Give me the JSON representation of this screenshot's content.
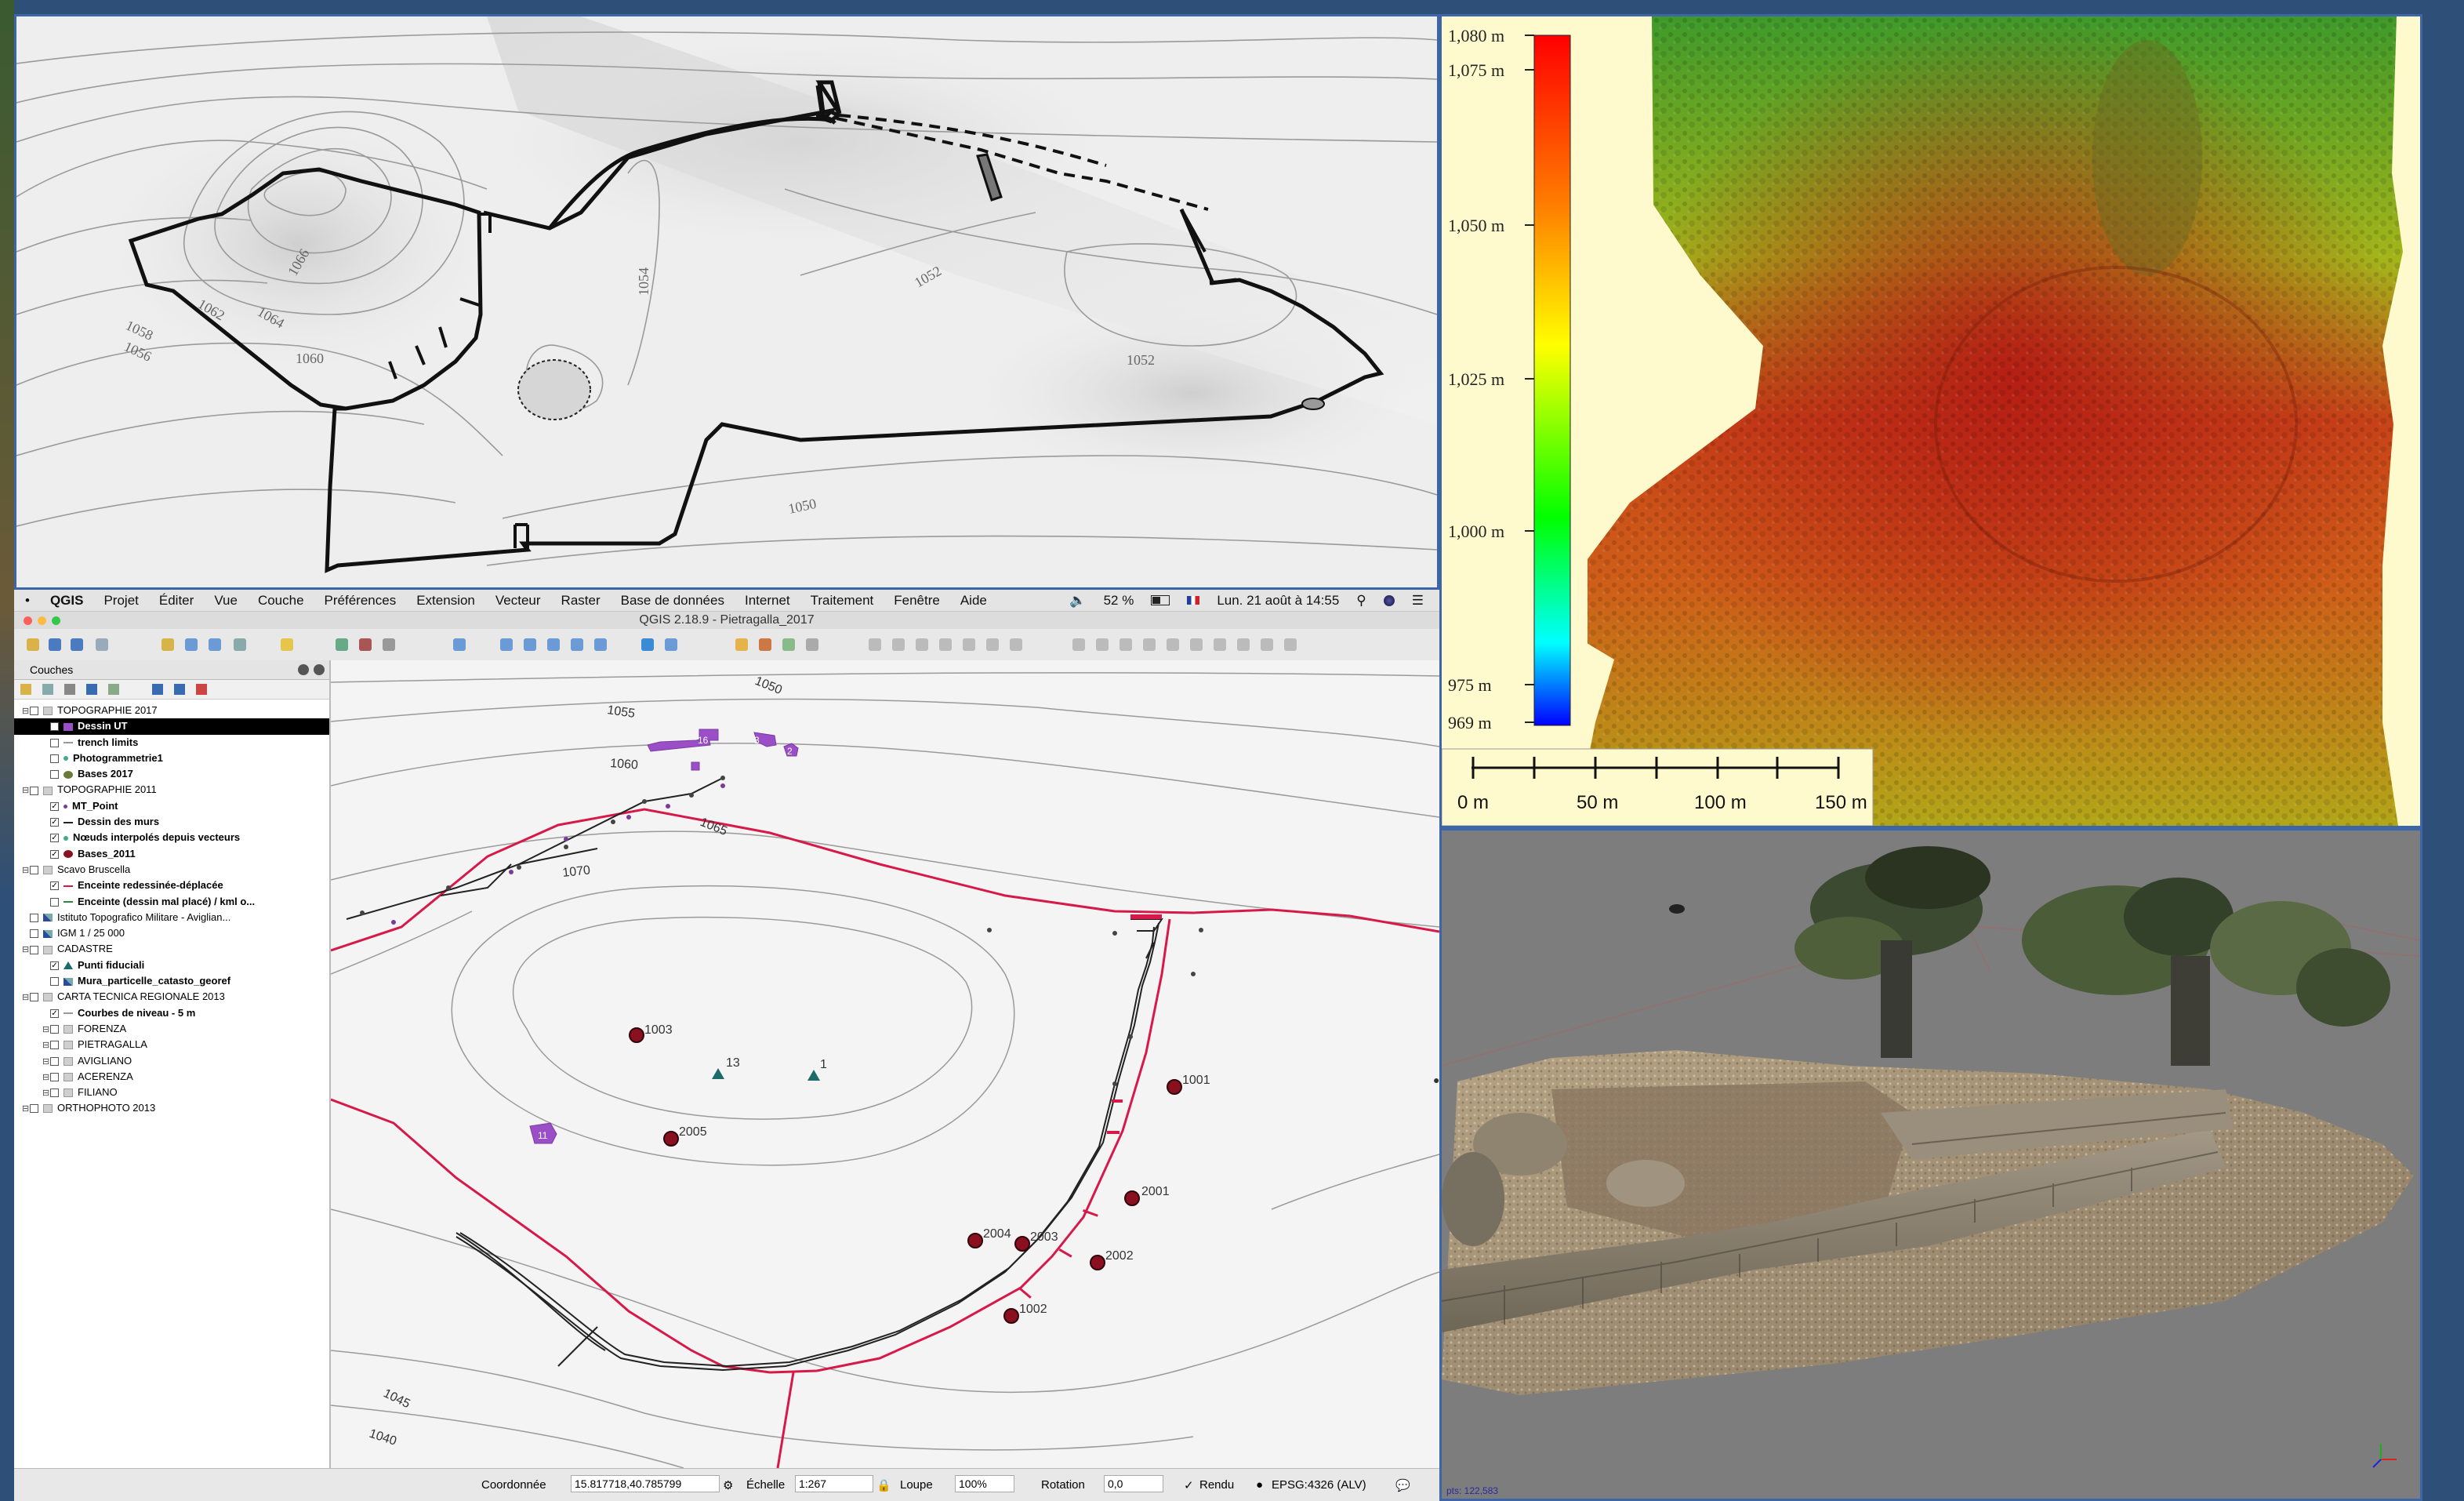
{
  "topo_map": {
    "contour_labels": [
      "1058",
      "1056",
      "1062",
      "1064",
      "1060",
      "1066",
      "1054",
      "1052",
      "1052",
      "1050"
    ]
  },
  "qgis": {
    "menubar": {
      "app_name": "QGIS",
      "items": [
        "Projet",
        "Éditer",
        "Vue",
        "Couche",
        "Préférences",
        "Extension",
        "Vecteur",
        "Raster",
        "Base de données",
        "Internet",
        "Traitement",
        "Fenêtre",
        "Aide"
      ],
      "battery": "52 %",
      "datetime": "Lun. 21 août à 14:55"
    },
    "window_title": "QGIS 2.18.9 - Pietragalla_2017",
    "layers_panel": {
      "title": "Couches",
      "rows": [
        {
          "label": "TOPOGRAPHIE 2017",
          "level": 0,
          "group": true,
          "checked": false
        },
        {
          "label": "Dessin UT",
          "level": 1,
          "checked": true,
          "selected": true,
          "symbol": "fill-purple"
        },
        {
          "label": "trench limits",
          "level": 1,
          "checked": false,
          "symbol": "line-dash"
        },
        {
          "label": "Photogrammetrie1",
          "level": 1,
          "checked": false,
          "symbol": "dot-green"
        },
        {
          "label": "Bases 2017",
          "level": 1,
          "checked": false,
          "symbol": "dot-olive"
        },
        {
          "label": "TOPOGRAPHIE 2011",
          "level": 0,
          "group": true,
          "checked": false
        },
        {
          "label": "MT_Point",
          "level": 1,
          "checked": true,
          "symbol": "dot-small"
        },
        {
          "label": "Dessin des murs",
          "level": 1,
          "checked": true,
          "symbol": "line-black"
        },
        {
          "label": "Nœuds interpolés depuis vecteurs",
          "level": 1,
          "checked": true,
          "symbol": "dot-green"
        },
        {
          "label": "Bases_2011",
          "level": 1,
          "checked": true,
          "symbol": "dot-red"
        },
        {
          "label": "Scavo Bruscella",
          "level": 0,
          "group": true,
          "checked": false
        },
        {
          "label": "Enceinte redessinée-déplacée",
          "level": 1,
          "checked": true,
          "symbol": "line-red"
        },
        {
          "label": "Enceinte (dessin mal placé) / kml o...",
          "level": 1,
          "checked": false,
          "symbol": "line-green"
        },
        {
          "label": "Istituto Topografico Militare - Aviglian...",
          "level": 0,
          "checked": false,
          "symbol": "raster"
        },
        {
          "label": "IGM 1 / 25 000",
          "level": 0,
          "checked": false,
          "symbol": "raster"
        },
        {
          "label": "CADASTRE",
          "level": 0,
          "group": true,
          "checked": false
        },
        {
          "label": "Punti fiduciali",
          "level": 1,
          "checked": true,
          "symbol": "tri-teal"
        },
        {
          "label": "Mura_particelle_catasto_georef",
          "level": 1,
          "checked": false,
          "symbol": "raster"
        },
        {
          "label": "CARTA TECNICA REGIONALE 2013",
          "level": 0,
          "group": true,
          "checked": false
        },
        {
          "label": "Courbes de niveau - 5 m",
          "level": 1,
          "checked": true,
          "symbol": "line-gray"
        },
        {
          "label": "FORENZA",
          "level": 1,
          "group": true,
          "checked": false
        },
        {
          "label": "PIETRAGALLA",
          "level": 1,
          "group": true,
          "checked": false
        },
        {
          "label": "AVIGLIANO",
          "level": 1,
          "group": true,
          "checked": false
        },
        {
          "label": "ACERENZA",
          "level": 1,
          "group": true,
          "checked": false
        },
        {
          "label": "FILIANO",
          "level": 1,
          "group": true,
          "checked": false
        },
        {
          "label": "ORTHOPHOTO 2013",
          "level": 0,
          "group": true,
          "checked": false
        }
      ]
    },
    "map_labels": {
      "contours": [
        "1050",
        "1055",
        "1060",
        "1065",
        "1070",
        "1045",
        "1040"
      ],
      "points": [
        "1003",
        "2005",
        "1001",
        "2001",
        "2004",
        "2003",
        "2002",
        "1002"
      ],
      "fiducials": [
        "13",
        "1"
      ],
      "units": [
        "16",
        "3",
        "2",
        "11"
      ]
    },
    "statusbar": {
      "coord_label": "Coordonnée",
      "coord_value": "15.817718,40.785799",
      "scale_label": "Échelle",
      "scale_value": "1:267",
      "magnifier_label": "Loupe",
      "magnifier_value": "100%",
      "rotation_label": "Rotation",
      "rotation_value": "0,0",
      "render_label": "Rendu",
      "crs": "EPSG:4326 (ALV)"
    }
  },
  "dem": {
    "legend_labels": [
      "1,080 m",
      "1,075 m",
      "1,050 m",
      "1,025 m",
      "1,000 m",
      "975 m",
      "969 m"
    ],
    "scale_labels": [
      "0 m",
      "50 m",
      "100 m",
      "150 m"
    ]
  },
  "pointcloud": {
    "status_text": "pts: 122,583"
  }
}
